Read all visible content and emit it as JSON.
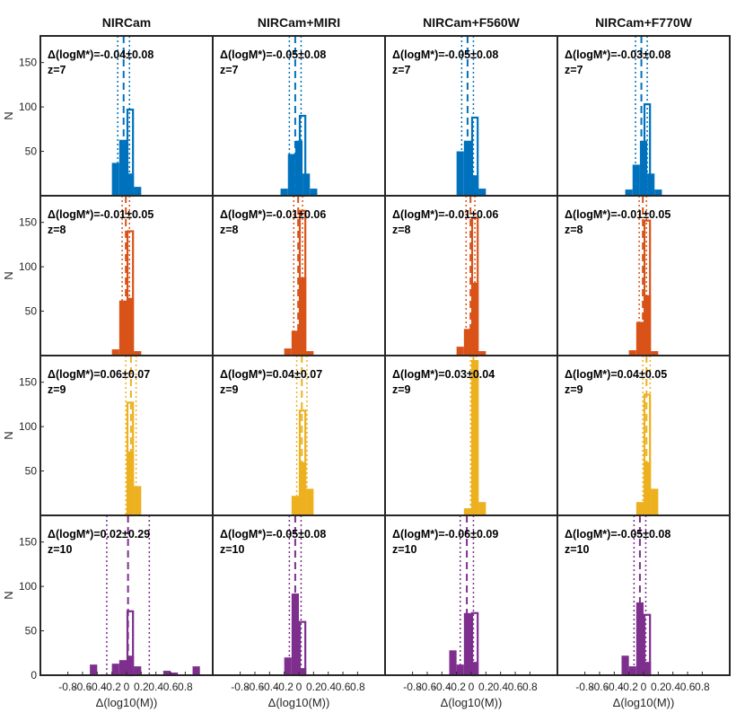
{
  "chart_data": {
    "type": "bar",
    "figure": "histogram grid of stellar-mass offsets",
    "xlabel": "Δ(log10(M))",
    "ylabel": "N",
    "x_ticks": [
      "-0.8",
      "-0.6",
      "-0.4",
      "-0.2",
      "0",
      "0.2",
      "0.4",
      "0.6",
      "0.8"
    ],
    "y_ticks": [
      "50",
      "100",
      "150"
    ],
    "xlim": [
      -1.15,
      1.15
    ],
    "ylim": [
      0,
      180
    ],
    "bin_width": 0.1,
    "columns": [
      "NIRCam",
      "NIRCam+MIRI",
      "NIRCam+F560W",
      "NIRCam+F770W"
    ],
    "rows": [
      {
        "label": "z=7",
        "color": "#0072BD"
      },
      {
        "label": "z=8",
        "color": "#D95319"
      },
      {
        "label": "z=9",
        "color": "#EDB120"
      },
      {
        "label": "z=10",
        "color": "#7E2F8E"
      }
    ],
    "panels": [
      [
        {
          "stat": "Δ(logM*)=-0.04±0.08",
          "mean": -0.04,
          "sigma": 0.08,
          "filled": [
            {
              "x": -0.15,
              "n": 37
            },
            {
              "x": -0.05,
              "n": 63
            },
            {
              "x": 0.05,
              "n": 25
            },
            {
              "x": 0.15,
              "n": 10
            }
          ],
          "open": [
            {
              "x": 0.05,
              "n": 97
            }
          ]
        },
        {
          "stat": "Δ(logM*)=-0.05±0.08",
          "mean": -0.05,
          "sigma": 0.08,
          "filled": [
            {
              "x": -0.2,
              "n": 8
            },
            {
              "x": -0.1,
              "n": 47
            },
            {
              "x": 0,
              "n": 62
            },
            {
              "x": 0.1,
              "n": 25
            },
            {
              "x": 0.2,
              "n": 8
            }
          ],
          "open": [
            {
              "x": 0.05,
              "n": 90
            }
          ]
        },
        {
          "stat": "Δ(logM*)=-0.05±0.08",
          "mean": -0.05,
          "sigma": 0.08,
          "filled": [
            {
              "x": -0.15,
              "n": 50
            },
            {
              "x": -0.05,
              "n": 62
            },
            {
              "x": 0.05,
              "n": 23
            },
            {
              "x": 0.15,
              "n": 8
            }
          ],
          "open": [
            {
              "x": 0.05,
              "n": 88
            }
          ]
        },
        {
          "stat": "Δ(logM*)=-0.03±0.08",
          "mean": -0.03,
          "sigma": 0.08,
          "filled": [
            {
              "x": -0.2,
              "n": 7
            },
            {
              "x": -0.1,
              "n": 35
            },
            {
              "x": 0,
              "n": 62
            },
            {
              "x": 0.1,
              "n": 25
            },
            {
              "x": 0.2,
              "n": 7
            }
          ],
          "open": [
            {
              "x": 0.05,
              "n": 103
            }
          ]
        }
      ],
      [
        {
          "stat": "Δ(logM*)=-0.01±0.05",
          "mean": -0.01,
          "sigma": 0.05,
          "filled": [
            {
              "x": -0.15,
              "n": 7
            },
            {
              "x": -0.05,
              "n": 62
            },
            {
              "x": 0.05,
              "n": 65
            },
            {
              "x": 0.15,
              "n": 5
            }
          ],
          "open": [
            {
              "x": 0.05,
              "n": 140
            }
          ]
        },
        {
          "stat": "Δ(logM*)=-0.01±0.06",
          "mean": -0.01,
          "sigma": 0.06,
          "filled": [
            {
              "x": -0.15,
              "n": 8
            },
            {
              "x": -0.05,
              "n": 28
            },
            {
              "x": 0.05,
              "n": 88
            },
            {
              "x": 0.15,
              "n": 5
            }
          ],
          "open": [
            {
              "x": 0.05,
              "n": 163
            }
          ]
        },
        {
          "stat": "Δ(logM*)=-0.01±0.06",
          "mean": -0.01,
          "sigma": 0.06,
          "filled": [
            {
              "x": -0.15,
              "n": 10
            },
            {
              "x": -0.05,
              "n": 30
            },
            {
              "x": 0.05,
              "n": 82
            },
            {
              "x": 0.15,
              "n": 5
            }
          ],
          "open": [
            {
              "x": 0.05,
              "n": 155
            }
          ]
        },
        {
          "stat": "Δ(logM*)=-0.01±0.05",
          "mean": -0.01,
          "sigma": 0.05,
          "filled": [
            {
              "x": -0.15,
              "n": 6
            },
            {
              "x": -0.05,
              "n": 38
            },
            {
              "x": 0.05,
              "n": 68
            },
            {
              "x": 0.15,
              "n": 5
            }
          ],
          "open": [
            {
              "x": 0.05,
              "n": 152
            }
          ]
        }
      ],
      [
        {
          "stat": "Δ(logM*)=0.06±0.07",
          "mean": 0.06,
          "sigma": 0.07,
          "filled": [
            {
              "x": 0.05,
              "n": 72
            },
            {
              "x": 0.15,
              "n": 33
            }
          ],
          "open": [
            {
              "x": 0.05,
              "n": 127
            }
          ]
        },
        {
          "stat": "Δ(logM*)=0.04±0.07",
          "mean": 0.04,
          "sigma": 0.07,
          "filled": [
            {
              "x": -0.05,
              "n": 22
            },
            {
              "x": 0.05,
              "n": 60
            },
            {
              "x": 0.15,
              "n": 30
            }
          ],
          "open": [
            {
              "x": 0.05,
              "n": 118
            }
          ]
        },
        {
          "stat": "Δ(logM*)=0.03±0.04",
          "mean": 0.03,
          "sigma": 0.04,
          "filled": [
            {
              "x": -0.05,
              "n": 8
            },
            {
              "x": 0.05,
              "n": 175
            },
            {
              "x": 0.15,
              "n": 15
            }
          ],
          "open": [
            {
              "x": 0.05,
              "n": 160
            }
          ]
        },
        {
          "stat": "Δ(logM*)=0.04±0.05",
          "mean": 0.04,
          "sigma": 0.05,
          "filled": [
            {
              "x": -0.05,
              "n": 15
            },
            {
              "x": 0.05,
              "n": 60
            },
            {
              "x": 0.15,
              "n": 30
            }
          ],
          "open": [
            {
              "x": 0.05,
              "n": 136
            }
          ]
        }
      ],
      [
        {
          "stat": "Δ(logM*)=0.02±0.29",
          "mean": 0.02,
          "sigma": 0.29,
          "filled": [
            {
              "x": -0.45,
              "n": 12
            },
            {
              "x": -0.15,
              "n": 13
            },
            {
              "x": -0.05,
              "n": 17
            },
            {
              "x": 0.05,
              "n": 22
            },
            {
              "x": 0.15,
              "n": 10
            },
            {
              "x": 0.55,
              "n": 5
            },
            {
              "x": 0.65,
              "n": 3
            },
            {
              "x": 0.95,
              "n": 10
            }
          ],
          "open": [
            {
              "x": 0.05,
              "n": 72
            }
          ]
        },
        {
          "stat": "Δ(logM*)=-0.05±0.08",
          "mean": -0.05,
          "sigma": 0.08,
          "filled": [
            {
              "x": -0.15,
              "n": 20
            },
            {
              "x": -0.05,
              "n": 92
            },
            {
              "x": 0.05,
              "n": 8
            }
          ],
          "open": [
            {
              "x": 0.05,
              "n": 60
            }
          ]
        },
        {
          "stat": "Δ(logM*)=-0.06±0.09",
          "mean": -0.06,
          "sigma": 0.09,
          "filled": [
            {
              "x": -0.25,
              "n": 28
            },
            {
              "x": -0.15,
              "n": 12
            },
            {
              "x": -0.05,
              "n": 70
            },
            {
              "x": 0.05,
              "n": 15
            }
          ],
          "open": [
            {
              "x": 0.05,
              "n": 70
            }
          ]
        },
        {
          "stat": "Δ(logM*)=-0.05±0.08",
          "mean": -0.05,
          "sigma": 0.08,
          "filled": [
            {
              "x": -0.25,
              "n": 22
            },
            {
              "x": -0.15,
              "n": 10
            },
            {
              "x": -0.05,
              "n": 82
            },
            {
              "x": 0.05,
              "n": 15
            }
          ],
          "open": [
            {
              "x": 0.05,
              "n": 68
            }
          ]
        }
      ]
    ]
  }
}
